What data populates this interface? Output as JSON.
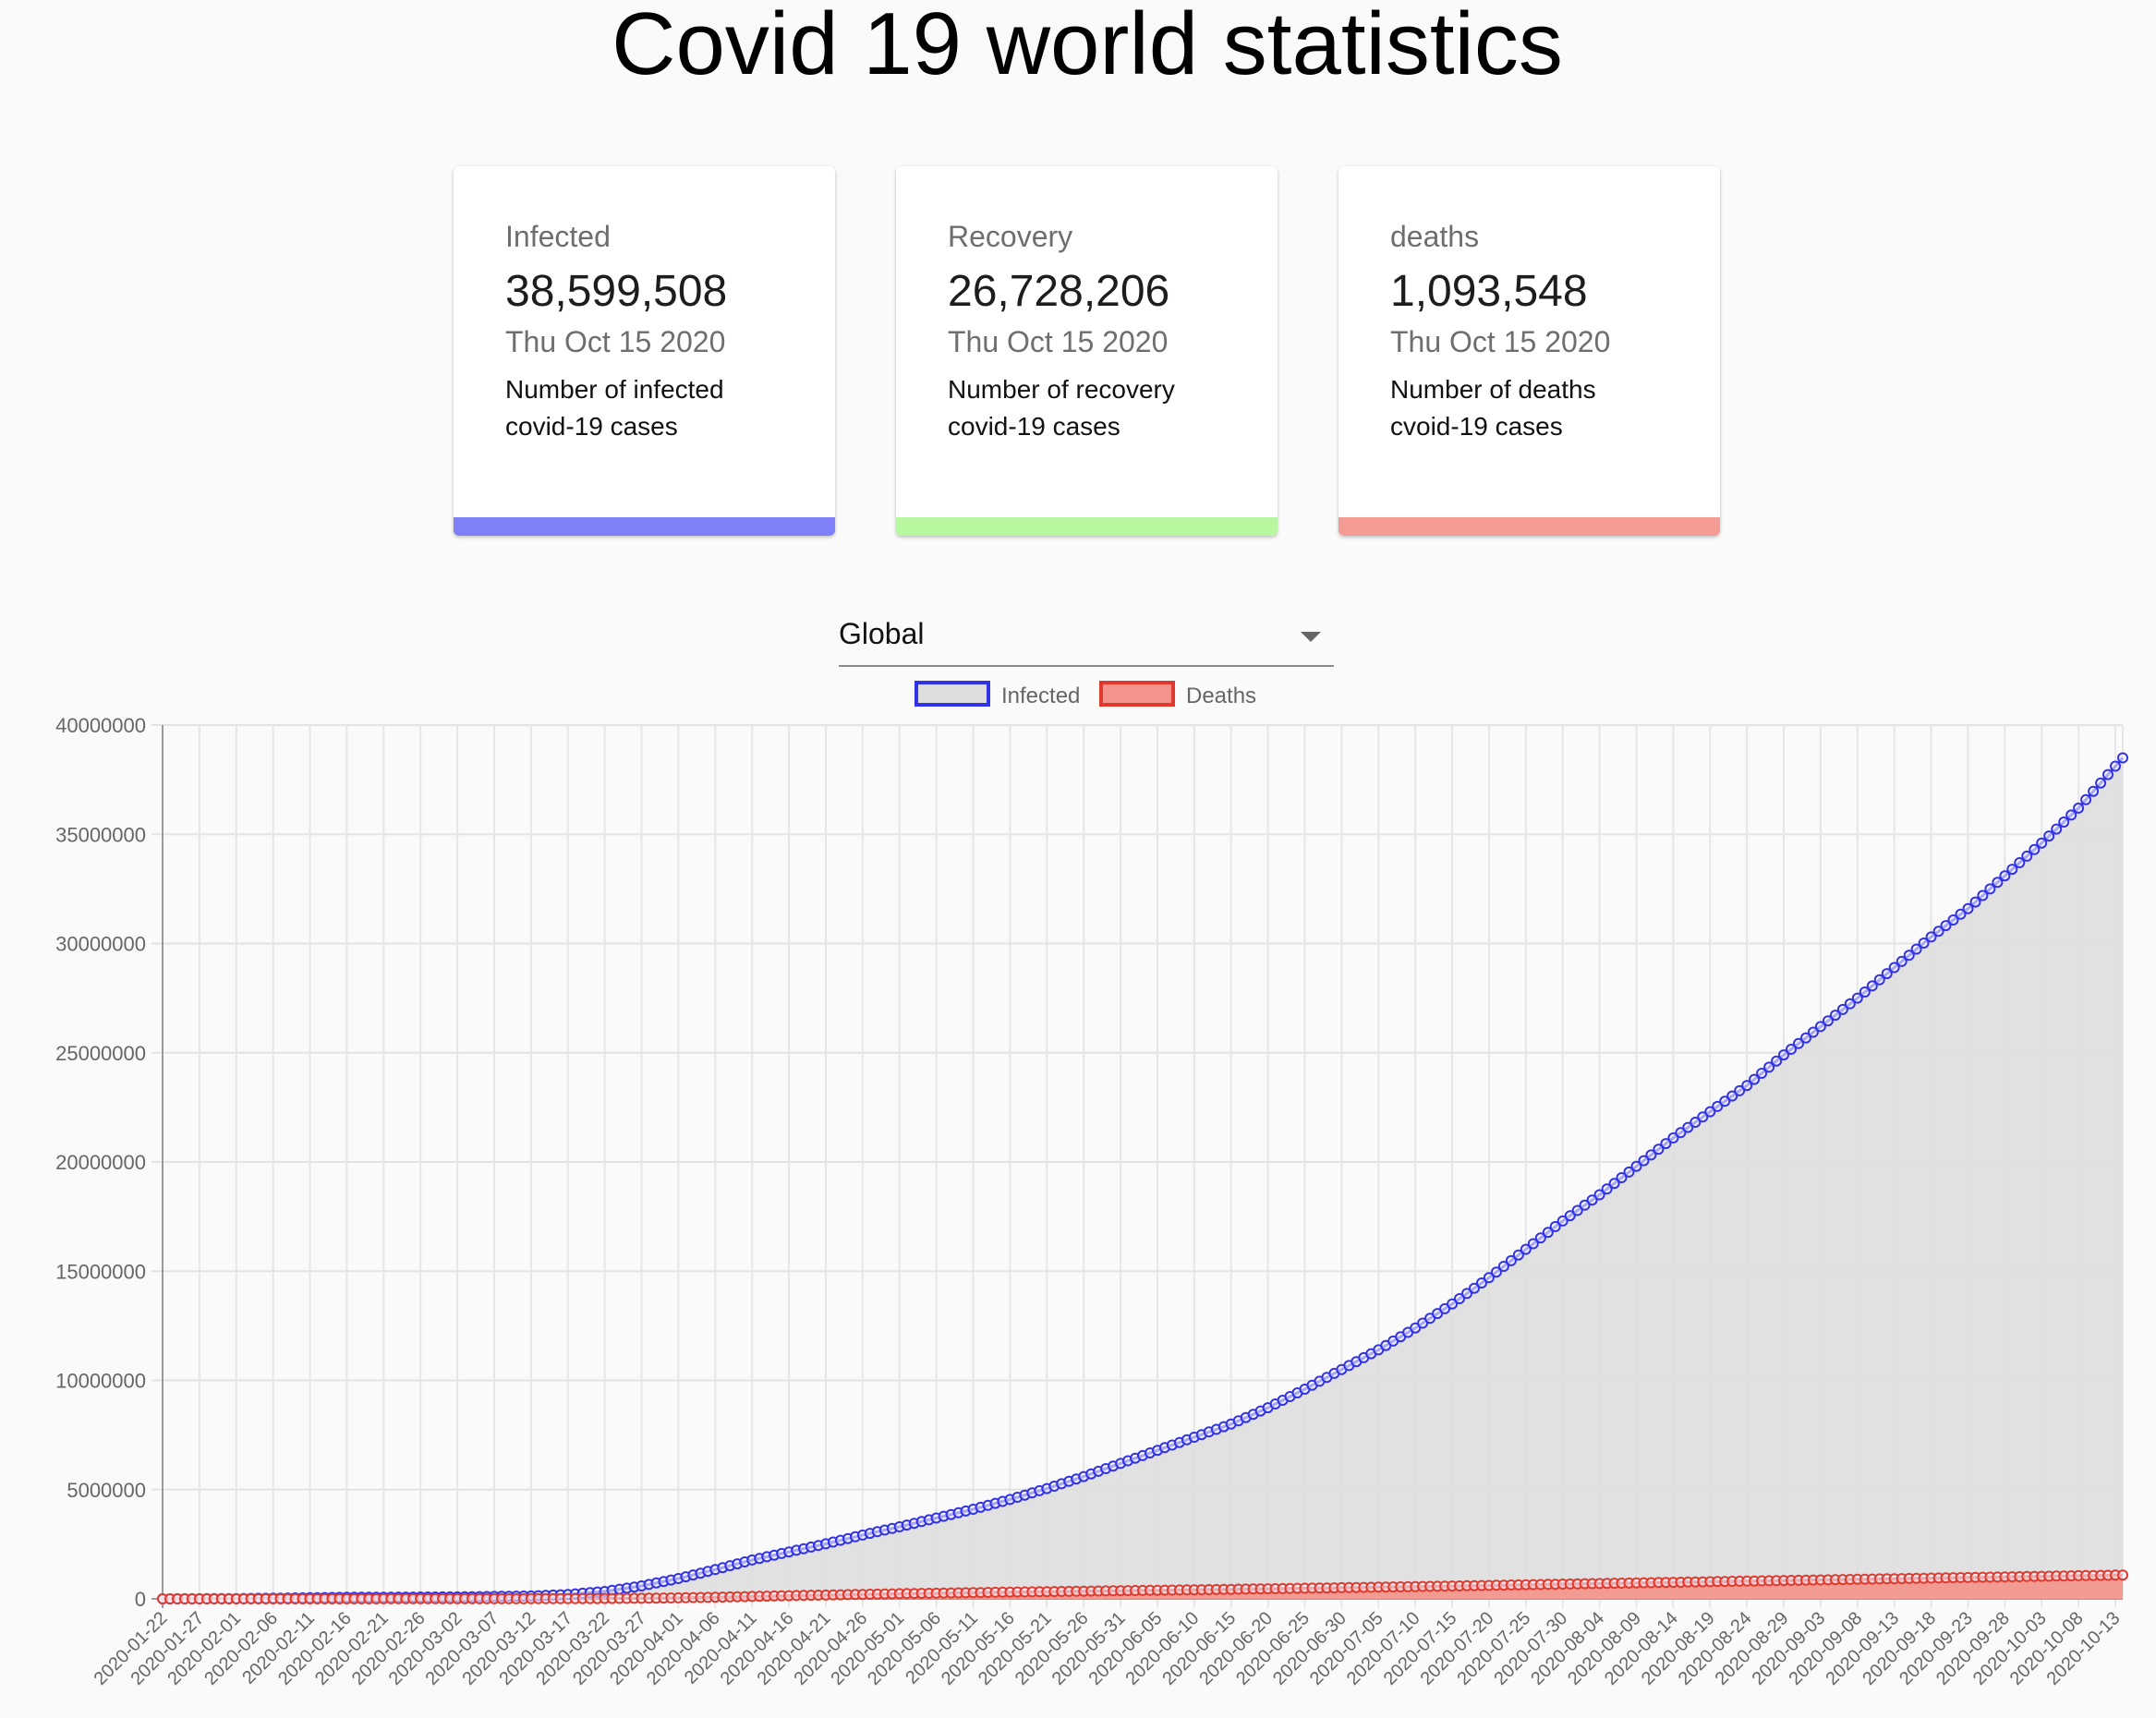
{
  "page": {
    "title": "Covid 19 world statistics"
  },
  "cards": [
    {
      "label": "Infected",
      "value": "38,599,508",
      "date": "Thu Oct 15 2020",
      "description": "Number of infected covid-19 cases",
      "accent": "#7f7ff8"
    },
    {
      "label": "Recovery",
      "value": "26,728,206",
      "date": "Thu Oct 15 2020",
      "description": "Number of recovery covid-19 cases",
      "accent": "#b7f7a0"
    },
    {
      "label": "deaths",
      "value": "1,093,548",
      "date": "Thu Oct 15 2020",
      "description": "Number of deaths cvoid-19 cases",
      "accent": "#f49b93"
    }
  ],
  "country_select": {
    "selected": "Global"
  },
  "chart_data": {
    "type": "line",
    "title": "",
    "xlabel": "",
    "ylabel": "",
    "ylim": [
      0,
      40000000
    ],
    "yticks": [
      0,
      5000000,
      10000000,
      15000000,
      20000000,
      25000000,
      30000000,
      35000000,
      40000000
    ],
    "grid": true,
    "legend": "top-center",
    "x_start": "2020-01-22",
    "x_end": "2020-10-14",
    "x_tick_every_days": 5,
    "x_tick_labels": [
      "2020-01-22",
      "2020-01-27",
      "2020-02-01",
      "2020-02-06",
      "2020-02-11",
      "2020-02-16",
      "2020-02-21",
      "2020-02-26",
      "2020-03-02",
      "2020-03-07",
      "2020-03-12",
      "2020-03-17",
      "2020-03-22",
      "2020-03-27",
      "2020-04-01",
      "2020-04-06",
      "2020-04-11",
      "2020-04-16",
      "2020-04-21",
      "2020-04-26",
      "2020-05-01",
      "2020-05-06",
      "2020-05-11",
      "2020-05-16",
      "2020-05-21",
      "2020-05-26",
      "2020-05-31",
      "2020-06-05",
      "2020-06-10",
      "2020-06-15",
      "2020-06-20",
      "2020-06-25",
      "2020-06-30",
      "2020-07-05",
      "2020-07-10",
      "2020-07-15",
      "2020-07-20",
      "2020-07-25",
      "2020-07-30",
      "2020-08-04",
      "2020-08-09",
      "2020-08-14",
      "2020-08-19",
      "2020-08-24",
      "2020-08-29",
      "2020-09-03",
      "2020-09-08",
      "2020-09-13",
      "2020-09-18",
      "2020-09-23",
      "2020-09-28",
      "2020-10-03",
      "2020-10-08",
      "2020-10-13"
    ],
    "series": [
      {
        "name": "Infected",
        "color": "#3232e6",
        "fill": "#dedede",
        "points": [
          [
            "2020-01-22",
            555
          ],
          [
            "2020-02-01",
            12000
          ],
          [
            "2020-02-16",
            70000
          ],
          [
            "2020-03-02",
            90000
          ],
          [
            "2020-03-12",
            130000
          ],
          [
            "2020-03-17",
            200000
          ],
          [
            "2020-03-22",
            340000
          ],
          [
            "2020-03-27",
            590000
          ],
          [
            "2020-04-01",
            930000
          ],
          [
            "2020-04-06",
            1340000
          ],
          [
            "2020-04-11",
            1780000
          ],
          [
            "2020-04-16",
            2150000
          ],
          [
            "2020-04-21",
            2520000
          ],
          [
            "2020-04-26",
            2920000
          ],
          [
            "2020-05-01",
            3300000
          ],
          [
            "2020-05-06",
            3700000
          ],
          [
            "2020-05-11",
            4100000
          ],
          [
            "2020-05-16",
            4550000
          ],
          [
            "2020-05-21",
            5050000
          ],
          [
            "2020-05-26",
            5600000
          ],
          [
            "2020-05-31",
            6200000
          ],
          [
            "2020-06-05",
            6800000
          ],
          [
            "2020-06-10",
            7400000
          ],
          [
            "2020-06-15",
            8000000
          ],
          [
            "2020-06-20",
            8750000
          ],
          [
            "2020-06-25",
            9600000
          ],
          [
            "2020-06-30",
            10500000
          ],
          [
            "2020-07-05",
            11400000
          ],
          [
            "2020-07-10",
            12400000
          ],
          [
            "2020-07-15",
            13500000
          ],
          [
            "2020-07-20",
            14700000
          ],
          [
            "2020-07-25",
            16000000
          ],
          [
            "2020-07-30",
            17300000
          ],
          [
            "2020-08-04",
            18500000
          ],
          [
            "2020-08-09",
            19800000
          ],
          [
            "2020-08-14",
            21100000
          ],
          [
            "2020-08-19",
            22300000
          ],
          [
            "2020-08-24",
            23500000
          ],
          [
            "2020-08-29",
            24900000
          ],
          [
            "2020-09-03",
            26200000
          ],
          [
            "2020-09-08",
            27500000
          ],
          [
            "2020-09-13",
            28900000
          ],
          [
            "2020-09-18",
            30300000
          ],
          [
            "2020-09-23",
            31600000
          ],
          [
            "2020-09-28",
            33100000
          ],
          [
            "2020-10-03",
            34600000
          ],
          [
            "2020-10-08",
            36200000
          ],
          [
            "2020-10-14",
            38500000
          ]
        ]
      },
      {
        "name": "Deaths",
        "color": "#e03a2e",
        "fill": "#f4938b",
        "points": [
          [
            "2020-01-22",
            17
          ],
          [
            "2020-02-16",
            1700
          ],
          [
            "2020-03-02",
            3100
          ],
          [
            "2020-03-17",
            8000
          ],
          [
            "2020-03-22",
            15000
          ],
          [
            "2020-03-27",
            27000
          ],
          [
            "2020-04-01",
            47000
          ],
          [
            "2020-04-06",
            75000
          ],
          [
            "2020-04-11",
            110000
          ],
          [
            "2020-04-16",
            145000
          ],
          [
            "2020-04-21",
            175000
          ],
          [
            "2020-04-26",
            205000
          ],
          [
            "2020-05-01",
            235000
          ],
          [
            "2020-05-11",
            285000
          ],
          [
            "2020-05-21",
            330000
          ],
          [
            "2020-05-31",
            372000
          ],
          [
            "2020-06-10",
            415000
          ],
          [
            "2020-06-20",
            460000
          ],
          [
            "2020-06-30",
            510000
          ],
          [
            "2020-07-10",
            560000
          ],
          [
            "2020-07-20",
            615000
          ],
          [
            "2020-07-30",
            675000
          ],
          [
            "2020-08-09",
            730000
          ],
          [
            "2020-08-19",
            785000
          ],
          [
            "2020-08-29",
            840000
          ],
          [
            "2020-09-08",
            895000
          ],
          [
            "2020-09-18",
            950000
          ],
          [
            "2020-09-28",
            1005000
          ],
          [
            "2020-10-08",
            1060000
          ],
          [
            "2020-10-14",
            1090000
          ]
        ]
      }
    ]
  }
}
